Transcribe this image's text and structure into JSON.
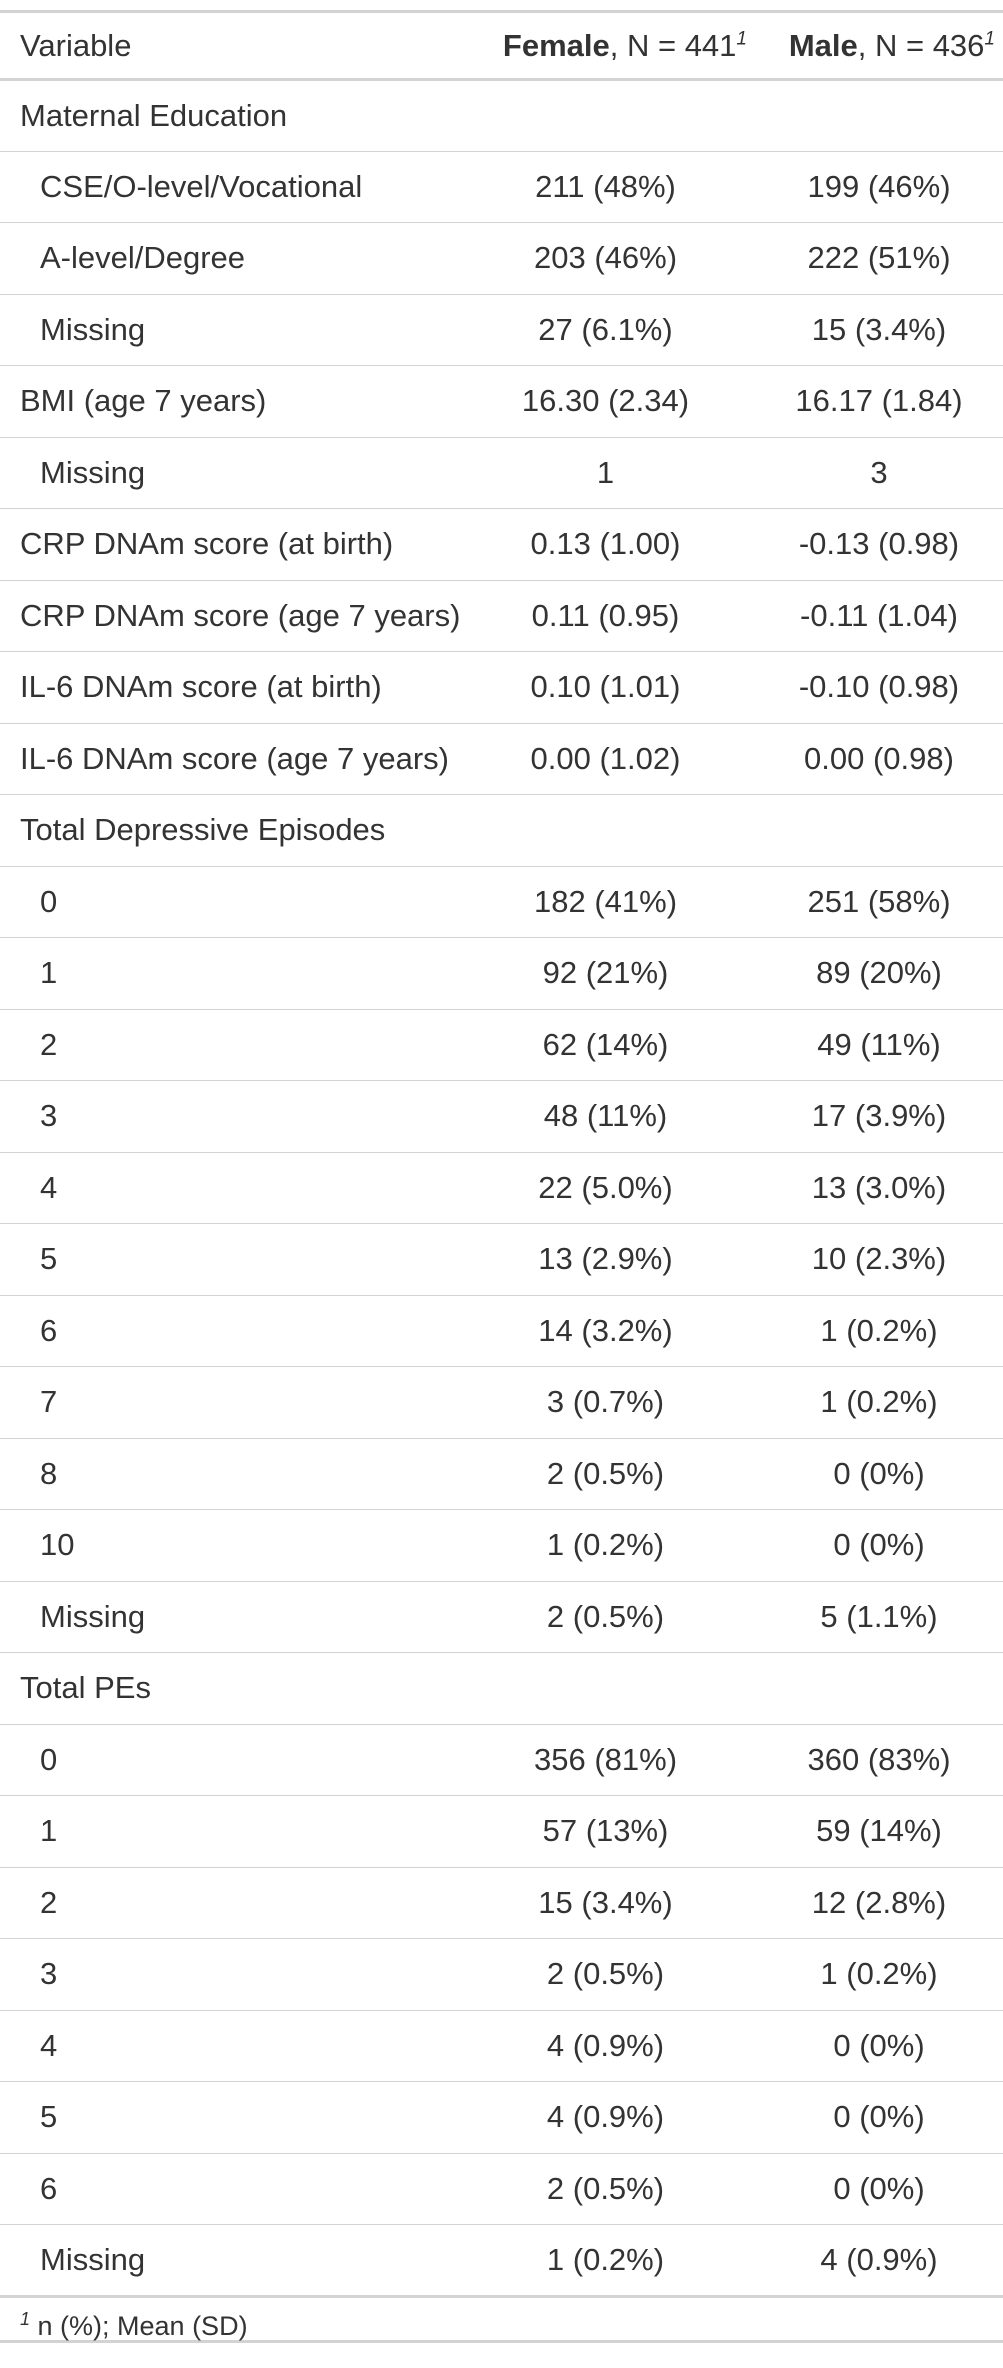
{
  "header": {
    "variable": "Variable",
    "female_name": "Female",
    "female_n": ", N = 441",
    "male_name": "Male",
    "male_n": ", N = 436",
    "footnote_marker": "1"
  },
  "rows": [
    {
      "label": "Maternal Education",
      "female": "",
      "male": "",
      "indent": false
    },
    {
      "label": "CSE/O-level/Vocational",
      "female": "211 (48%)",
      "male": "199 (46%)",
      "indent": true
    },
    {
      "label": "A-level/Degree",
      "female": "203 (46%)",
      "male": "222 (51%)",
      "indent": true
    },
    {
      "label": "Missing",
      "female": "27 (6.1%)",
      "male": "15 (3.4%)",
      "indent": true
    },
    {
      "label": "BMI (age 7 years)",
      "female": "16.30 (2.34)",
      "male": "16.17 (1.84)",
      "indent": false
    },
    {
      "label": "Missing",
      "female": "1",
      "male": "3",
      "indent": true
    },
    {
      "label": "CRP DNAm score (at birth)",
      "female": "0.13 (1.00)",
      "male": "-0.13 (0.98)",
      "indent": false
    },
    {
      "label": "CRP DNAm score (age 7 years)",
      "female": "0.11 (0.95)",
      "male": "-0.11 (1.04)",
      "indent": false
    },
    {
      "label": "IL-6 DNAm score (at birth)",
      "female": "0.10 (1.01)",
      "male": "-0.10 (0.98)",
      "indent": false
    },
    {
      "label": "IL-6 DNAm score (age 7 years)",
      "female": "0.00 (1.02)",
      "male": "0.00 (0.98)",
      "indent": false
    },
    {
      "label": "Total Depressive Episodes",
      "female": "",
      "male": "",
      "indent": false
    },
    {
      "label": "0",
      "female": "182 (41%)",
      "male": "251 (58%)",
      "indent": true
    },
    {
      "label": "1",
      "female": "92 (21%)",
      "male": "89 (20%)",
      "indent": true
    },
    {
      "label": "2",
      "female": "62 (14%)",
      "male": "49 (11%)",
      "indent": true
    },
    {
      "label": "3",
      "female": "48 (11%)",
      "male": "17 (3.9%)",
      "indent": true
    },
    {
      "label": "4",
      "female": "22 (5.0%)",
      "male": "13 (3.0%)",
      "indent": true
    },
    {
      "label": "5",
      "female": "13 (2.9%)",
      "male": "10 (2.3%)",
      "indent": true
    },
    {
      "label": "6",
      "female": "14 (3.2%)",
      "male": "1 (0.2%)",
      "indent": true
    },
    {
      "label": "7",
      "female": "3 (0.7%)",
      "male": "1 (0.2%)",
      "indent": true
    },
    {
      "label": "8",
      "female": "2 (0.5%)",
      "male": "0 (0%)",
      "indent": true
    },
    {
      "label": "10",
      "female": "1 (0.2%)",
      "male": "0 (0%)",
      "indent": true
    },
    {
      "label": "Missing",
      "female": "2 (0.5%)",
      "male": "5 (1.1%)",
      "indent": true
    },
    {
      "label": "Total PEs",
      "female": "",
      "male": "",
      "indent": false
    },
    {
      "label": "0",
      "female": "356 (81%)",
      "male": "360 (83%)",
      "indent": true
    },
    {
      "label": "1",
      "female": "57 (13%)",
      "male": "59 (14%)",
      "indent": true
    },
    {
      "label": "2",
      "female": "15 (3.4%)",
      "male": "12 (2.8%)",
      "indent": true
    },
    {
      "label": "3",
      "female": "2 (0.5%)",
      "male": "1 (0.2%)",
      "indent": true
    },
    {
      "label": "4",
      "female": "4 (0.9%)",
      "male": "0 (0%)",
      "indent": true
    },
    {
      "label": "5",
      "female": "4 (0.9%)",
      "male": "0 (0%)",
      "indent": true
    },
    {
      "label": "6",
      "female": "2 (0.5%)",
      "male": "0 (0%)",
      "indent": true
    },
    {
      "label": "Missing",
      "female": "1 (0.2%)",
      "male": "4 (0.9%)",
      "indent": true
    }
  ],
  "footnote": {
    "marker": "1",
    "text": " n (%); Mean (SD)"
  }
}
